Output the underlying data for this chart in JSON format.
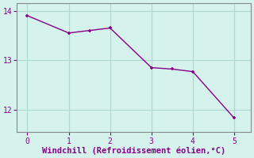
{
  "x": [
    0,
    1,
    1.5,
    2,
    3,
    3.5,
    4,
    5
  ],
  "y": [
    13.9,
    13.55,
    13.6,
    13.65,
    12.85,
    12.82,
    12.77,
    11.83
  ],
  "line_color": "#880088",
  "marker_color": "#880088",
  "bg_color": "#d5f2ec",
  "grid_color": "#b0d8d0",
  "xlabel": "Windchill (Refroidissement éolien,°C)",
  "xlabel_color": "#880088",
  "xlabel_fontsize": 7.5,
  "xlim": [
    -0.25,
    5.4
  ],
  "ylim": [
    11.55,
    14.15
  ],
  "yticks": [
    12,
    13,
    14
  ],
  "xticks": [
    0,
    1,
    2,
    3,
    4,
    5
  ],
  "tick_color": "#880088",
  "axis_color": "#888888",
  "line_width": 1.0,
  "marker_size": 3.5
}
